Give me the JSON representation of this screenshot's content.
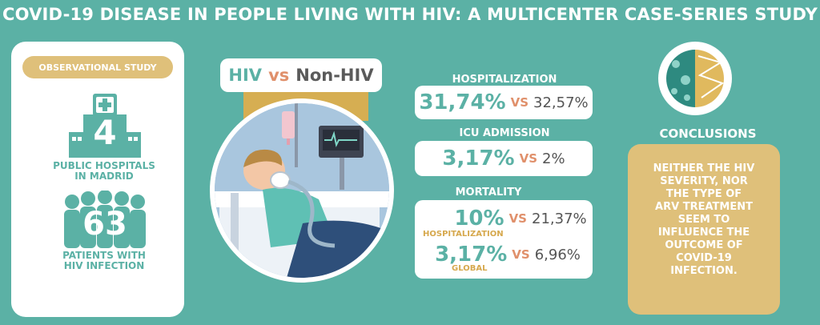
{
  "title": "COVID-19 DISEASE IN PEOPLE LIVING WITH HIV: A MULTICENTER CASE-SERIES STUDY",
  "left_panel": {
    "badge": "OBSERVATIONAL STUDY",
    "hospitals_count": "4",
    "hospitals_label_1": "PUBLIC HOSPITALS",
    "hospitals_label_2": "IN MADRID",
    "patients_count": "63",
    "patients_label_1": "PATIENTS WITH",
    "patients_label_2": "HIV INFECTION"
  },
  "comparison": {
    "hiv": "HIV",
    "vs": "vs",
    "non_hiv": "Non-HIV"
  },
  "stats": {
    "hospitalization": {
      "label": "HOSPITALIZATION",
      "hiv": "31,74%",
      "vs": "VS",
      "non_hiv": "32,57%"
    },
    "icu": {
      "label": "ICU ADMISSION",
      "hiv": "3,17%",
      "vs": "VS",
      "non_hiv": "2%"
    },
    "mortality": {
      "label": "MORTALITY",
      "hosp_hiv": "10%",
      "hosp_vs": "VS",
      "hosp_non_hiv": "21,37%",
      "hosp_note": "HOSPITALIZATION",
      "global_hiv": "3,17%",
      "global_vs": "VS",
      "global_non_hiv": "6,96%",
      "global_note": "GLOBAL"
    }
  },
  "conclusions": {
    "title": "CONCLUSIONS",
    "lines": [
      "NEITHER THE HIV",
      "SEVERITY, NOR",
      "THE TYPE OF",
      "ARV TREATMENT",
      "SEEM TO",
      "INFLUENCE THE",
      "OUTCOME OF",
      "COVID-19",
      "INFECTION."
    ]
  },
  "colors": {
    "background": "#5bb1a5",
    "teal": "#5bb1a5",
    "gold": "#dfc07a",
    "orange": "#e0906b"
  }
}
